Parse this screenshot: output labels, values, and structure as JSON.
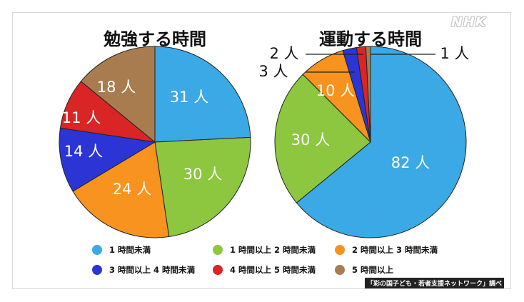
{
  "brand": "NHK",
  "source_note": "「彩の国子ども・若者支援ネットワーク」調べ",
  "legend": [
    {
      "label": "1 時間未満",
      "color": "#3aa9e6"
    },
    {
      "label": "1 時間以上 2 時間未満",
      "color": "#8dc63f"
    },
    {
      "label": "2 時間以上 3 時間未満",
      "color": "#f7931e"
    },
    {
      "label": "3 時間以上 4 時間未満",
      "color": "#2b35d6"
    },
    {
      "label": "4 時間以上 5 時間未満",
      "color": "#d92525"
    },
    {
      "label": "5 時間以上",
      "color": "#a97c50"
    }
  ],
  "chart_data": [
    {
      "type": "pie",
      "title": "勉強する時間",
      "categories": [
        "1 時間未満",
        "1 時間以上 2 時間未満",
        "2 時間以上 3 時間未満",
        "3 時間以上 4 時間未満",
        "4 時間以上 5 時間未満",
        "5 時間以上"
      ],
      "values": [
        31,
        30,
        24,
        14,
        11,
        18
      ],
      "data_labels": [
        "31 人",
        "30 人",
        "24 人",
        "14 人",
        "11 人",
        "18 人"
      ],
      "colors": [
        "#3aa9e6",
        "#8dc63f",
        "#f7931e",
        "#2b35d6",
        "#d92525",
        "#a97c50"
      ],
      "start": "12 o'clock, clockwise"
    },
    {
      "type": "pie",
      "title": "運動する時間",
      "categories": [
        "1 時間未満",
        "1 時間以上 2 時間未満",
        "2 時間以上 3 時間未満",
        "3 時間以上 4 時間未満",
        "4 時間以上 5 時間未満",
        "5 時間以上"
      ],
      "values": [
        82,
        30,
        10,
        3,
        2,
        1
      ],
      "data_labels": [
        "82 人",
        "30 人",
        "10 人",
        "3 人",
        "2 人",
        "1 人"
      ],
      "colors": [
        "#3aa9e6",
        "#8dc63f",
        "#f7931e",
        "#2b35d6",
        "#d92525",
        "#a97c50"
      ],
      "start": "12 o'clock, clockwise"
    }
  ]
}
